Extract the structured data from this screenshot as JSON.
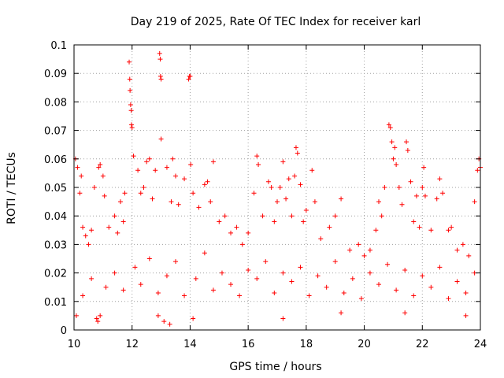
{
  "chart_data": {
    "type": "scatter",
    "title": "Day 219 of 2025, Rate Of TEC Index for receiver karl",
    "xlabel": "GPS time / hours",
    "ylabel": "ROTI / TECUs",
    "xlim": [
      10,
      24
    ],
    "ylim": [
      0,
      0.1
    ],
    "x_ticks": [
      10,
      12,
      14,
      16,
      18,
      20,
      22,
      24
    ],
    "x_tick_labels": [
      "10",
      "12",
      "14",
      "16",
      "18",
      "20",
      "22",
      "24"
    ],
    "y_ticks": [
      0,
      0.01,
      0.02,
      0.03,
      0.04,
      0.05,
      0.06,
      0.07,
      0.08,
      0.09,
      0.1
    ],
    "y_tick_labels": [
      "0",
      "0.01",
      "0.02",
      "0.03",
      "0.04",
      "0.05",
      "0.06",
      "0.07",
      "0.08",
      "0.09",
      "0.1"
    ],
    "grid": true,
    "marker": "+",
    "series": [
      {
        "name": "ROTI",
        "color": "#ff0000",
        "points": [
          [
            10.05,
            0.06
          ],
          [
            10.12,
            0.057
          ],
          [
            10.2,
            0.048
          ],
          [
            10.25,
            0.054
          ],
          [
            10.3,
            0.036
          ],
          [
            10.4,
            0.033
          ],
          [
            10.5,
            0.03
          ],
          [
            10.6,
            0.035
          ],
          [
            10.7,
            0.05
          ],
          [
            10.78,
            0.004
          ],
          [
            10.82,
            0.003
          ],
          [
            10.85,
            0.057
          ],
          [
            10.9,
            0.058
          ],
          [
            11.0,
            0.054
          ],
          [
            11.05,
            0.047
          ],
          [
            11.2,
            0.036
          ],
          [
            11.4,
            0.04
          ],
          [
            11.5,
            0.034
          ],
          [
            11.6,
            0.045
          ],
          [
            11.7,
            0.038
          ],
          [
            11.75,
            0.048
          ],
          [
            11.9,
            0.094
          ],
          [
            11.92,
            0.088
          ],
          [
            11.93,
            0.084
          ],
          [
            11.95,
            0.079
          ],
          [
            11.97,
            0.077
          ],
          [
            11.98,
            0.072
          ],
          [
            12.0,
            0.071
          ],
          [
            12.05,
            0.061
          ],
          [
            12.2,
            0.056
          ],
          [
            12.3,
            0.048
          ],
          [
            12.4,
            0.05
          ],
          [
            12.5,
            0.059
          ],
          [
            12.6,
            0.06
          ],
          [
            12.7,
            0.046
          ],
          [
            12.8,
            0.056
          ],
          [
            12.95,
            0.097
          ],
          [
            12.97,
            0.095
          ],
          [
            12.98,
            0.089
          ],
          [
            13.0,
            0.088
          ],
          [
            13.0,
            0.067
          ],
          [
            13.2,
            0.057
          ],
          [
            13.35,
            0.045
          ],
          [
            13.4,
            0.06
          ],
          [
            13.5,
            0.054
          ],
          [
            13.6,
            0.044
          ],
          [
            13.8,
            0.053
          ],
          [
            13.95,
            0.088
          ],
          [
            13.98,
            0.089
          ],
          [
            14.0,
            0.089
          ],
          [
            14.02,
            0.058
          ],
          [
            14.1,
            0.048
          ],
          [
            14.3,
            0.043
          ],
          [
            14.5,
            0.051
          ],
          [
            14.6,
            0.052
          ],
          [
            14.7,
            0.045
          ],
          [
            14.8,
            0.059
          ],
          [
            15.0,
            0.038
          ],
          [
            15.2,
            0.04
          ],
          [
            15.4,
            0.034
          ],
          [
            15.6,
            0.036
          ],
          [
            15.8,
            0.03
          ],
          [
            16.0,
            0.034
          ],
          [
            16.2,
            0.048
          ],
          [
            16.3,
            0.061
          ],
          [
            16.35,
            0.058
          ],
          [
            16.5,
            0.04
          ],
          [
            16.7,
            0.052
          ],
          [
            16.8,
            0.05
          ],
          [
            16.9,
            0.038
          ],
          [
            17.0,
            0.045
          ],
          [
            17.1,
            0.05
          ],
          [
            17.2,
            0.059
          ],
          [
            17.3,
            0.046
          ],
          [
            17.4,
            0.053
          ],
          [
            17.5,
            0.04
          ],
          [
            17.6,
            0.054
          ],
          [
            17.65,
            0.064
          ],
          [
            17.7,
            0.062
          ],
          [
            17.8,
            0.051
          ],
          [
            17.9,
            0.038
          ],
          [
            18.0,
            0.042
          ],
          [
            18.2,
            0.056
          ],
          [
            18.3,
            0.045
          ],
          [
            18.5,
            0.032
          ],
          [
            18.8,
            0.036
          ],
          [
            19.0,
            0.04
          ],
          [
            19.2,
            0.046
          ],
          [
            19.5,
            0.028
          ],
          [
            19.8,
            0.03
          ],
          [
            20.0,
            0.026
          ],
          [
            20.2,
            0.028
          ],
          [
            20.4,
            0.035
          ],
          [
            20.5,
            0.045
          ],
          [
            20.6,
            0.04
          ],
          [
            20.7,
            0.05
          ],
          [
            20.85,
            0.072
          ],
          [
            20.9,
            0.071
          ],
          [
            20.95,
            0.066
          ],
          [
            21.0,
            0.06
          ],
          [
            21.05,
            0.064
          ],
          [
            21.1,
            0.058
          ],
          [
            21.2,
            0.05
          ],
          [
            21.3,
            0.044
          ],
          [
            21.45,
            0.066
          ],
          [
            21.5,
            0.063
          ],
          [
            21.6,
            0.052
          ],
          [
            21.7,
            0.038
          ],
          [
            21.8,
            0.047
          ],
          [
            21.9,
            0.036
          ],
          [
            22.0,
            0.05
          ],
          [
            22.05,
            0.057
          ],
          [
            22.1,
            0.047
          ],
          [
            22.3,
            0.035
          ],
          [
            22.5,
            0.046
          ],
          [
            22.6,
            0.053
          ],
          [
            22.7,
            0.048
          ],
          [
            22.9,
            0.035
          ],
          [
            23.0,
            0.036
          ],
          [
            23.2,
            0.028
          ],
          [
            23.4,
            0.03
          ],
          [
            23.6,
            0.026
          ],
          [
            23.8,
            0.045
          ],
          [
            23.9,
            0.056
          ],
          [
            23.95,
            0.06
          ],
          [
            24.0,
            0.057
          ],
          [
            10.08,
            0.005
          ],
          [
            10.9,
            0.005
          ],
          [
            12.9,
            0.005
          ],
          [
            13.1,
            0.003
          ],
          [
            13.3,
            0.002
          ],
          [
            14.1,
            0.004
          ],
          [
            17.2,
            0.004
          ],
          [
            19.2,
            0.006
          ],
          [
            21.4,
            0.006
          ],
          [
            23.5,
            0.005
          ],
          [
            10.3,
            0.012
          ],
          [
            10.6,
            0.018
          ],
          [
            11.1,
            0.015
          ],
          [
            11.4,
            0.02
          ],
          [
            11.7,
            0.014
          ],
          [
            12.1,
            0.022
          ],
          [
            12.3,
            0.016
          ],
          [
            12.6,
            0.025
          ],
          [
            12.9,
            0.013
          ],
          [
            13.2,
            0.019
          ],
          [
            13.5,
            0.024
          ],
          [
            13.8,
            0.012
          ],
          [
            14.2,
            0.018
          ],
          [
            14.5,
            0.027
          ],
          [
            14.8,
            0.014
          ],
          [
            15.1,
            0.02
          ],
          [
            15.4,
            0.016
          ],
          [
            15.7,
            0.012
          ],
          [
            16.0,
            0.021
          ],
          [
            16.3,
            0.018
          ],
          [
            16.6,
            0.024
          ],
          [
            16.9,
            0.013
          ],
          [
            17.2,
            0.02
          ],
          [
            17.5,
            0.017
          ],
          [
            17.8,
            0.022
          ],
          [
            18.1,
            0.012
          ],
          [
            18.4,
            0.019
          ],
          [
            18.7,
            0.015
          ],
          [
            19.0,
            0.024
          ],
          [
            19.3,
            0.013
          ],
          [
            19.6,
            0.018
          ],
          [
            19.9,
            0.011
          ],
          [
            20.2,
            0.02
          ],
          [
            20.5,
            0.016
          ],
          [
            20.8,
            0.023
          ],
          [
            21.1,
            0.014
          ],
          [
            21.4,
            0.021
          ],
          [
            21.7,
            0.012
          ],
          [
            22.0,
            0.019
          ],
          [
            22.3,
            0.015
          ],
          [
            22.6,
            0.022
          ],
          [
            22.9,
            0.011
          ],
          [
            23.2,
            0.017
          ],
          [
            23.5,
            0.013
          ],
          [
            23.8,
            0.02
          ]
        ]
      }
    ]
  }
}
